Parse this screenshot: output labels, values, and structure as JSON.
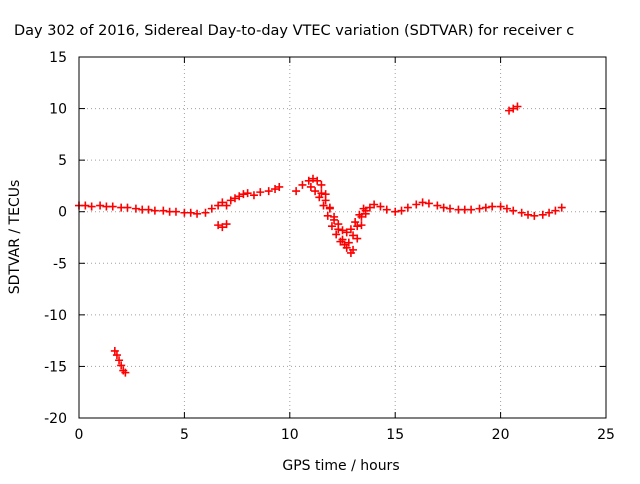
{
  "colors": {
    "background": "#ffffff",
    "axis": "#000000",
    "grid": "#a0a0a0",
    "series": "#ff0000"
  },
  "chart_data": {
    "type": "scatter",
    "title": "Day 302 of 2016, Sidereal Day-to-day VTEC variation (SDTVAR) for receiver c",
    "xlabel": "GPS time / hours",
    "ylabel": "SDTVAR / TECUs",
    "xlim": [
      0,
      25
    ],
    "ylim": [
      -20,
      15
    ],
    "xticks": [
      0,
      5,
      10,
      15,
      20,
      25
    ],
    "yticks": [
      -20,
      -15,
      -10,
      -5,
      0,
      5,
      10,
      15
    ],
    "grid": true,
    "marker": "+",
    "series": [
      {
        "name": "SDTVAR",
        "color": "#ff0000",
        "points": [
          [
            0.0,
            0.6
          ],
          [
            0.3,
            0.6
          ],
          [
            0.6,
            0.5
          ],
          [
            1.0,
            0.6
          ],
          [
            1.3,
            0.5
          ],
          [
            1.6,
            0.5
          ],
          [
            2.0,
            0.4
          ],
          [
            2.3,
            0.4
          ],
          [
            2.7,
            0.3
          ],
          [
            3.0,
            0.2
          ],
          [
            3.3,
            0.2
          ],
          [
            3.6,
            0.1
          ],
          [
            4.0,
            0.1
          ],
          [
            4.3,
            0.0
          ],
          [
            4.6,
            0.0
          ],
          [
            5.0,
            -0.1
          ],
          [
            5.3,
            -0.1
          ],
          [
            5.6,
            -0.2
          ],
          [
            6.0,
            -0.1
          ],
          [
            6.3,
            0.3
          ],
          [
            6.6,
            0.6
          ],
          [
            6.8,
            0.9
          ],
          [
            7.0,
            0.6
          ],
          [
            7.2,
            1.1
          ],
          [
            7.4,
            1.3
          ],
          [
            7.6,
            1.5
          ],
          [
            7.8,
            1.7
          ],
          [
            8.0,
            1.8
          ],
          [
            8.3,
            1.6
          ],
          [
            8.6,
            1.9
          ],
          [
            9.0,
            2.0
          ],
          [
            9.3,
            2.2
          ],
          [
            9.5,
            2.4
          ],
          [
            10.3,
            2.0
          ],
          [
            10.6,
            2.6
          ],
          [
            10.9,
            3.0
          ],
          [
            11.1,
            3.2
          ],
          [
            11.3,
            3.0
          ],
          [
            11.5,
            2.6
          ],
          [
            11.7,
            1.7
          ],
          [
            11.9,
            0.4
          ],
          [
            12.1,
            -0.8
          ],
          [
            12.3,
            -1.7
          ],
          [
            12.5,
            -2.7
          ],
          [
            12.7,
            -3.5
          ],
          [
            12.9,
            -4.0
          ],
          [
            13.0,
            -3.7
          ],
          [
            13.2,
            -2.6
          ],
          [
            13.4,
            -1.3
          ],
          [
            13.6,
            -0.2
          ],
          [
            13.8,
            0.4
          ],
          [
            14.0,
            0.7
          ],
          [
            14.3,
            0.5
          ],
          [
            14.6,
            0.2
          ],
          [
            15.0,
            0.0
          ],
          [
            15.3,
            0.1
          ],
          [
            15.6,
            0.4
          ],
          [
            16.0,
            0.7
          ],
          [
            16.3,
            0.9
          ],
          [
            16.6,
            0.8
          ],
          [
            17.0,
            0.6
          ],
          [
            17.3,
            0.4
          ],
          [
            17.6,
            0.3
          ],
          [
            18.0,
            0.2
          ],
          [
            18.3,
            0.2
          ],
          [
            18.6,
            0.2
          ],
          [
            19.0,
            0.3
          ],
          [
            19.3,
            0.4
          ],
          [
            19.6,
            0.5
          ],
          [
            20.0,
            0.5
          ],
          [
            20.3,
            0.3
          ],
          [
            20.6,
            0.1
          ],
          [
            21.0,
            -0.1
          ],
          [
            21.3,
            -0.3
          ],
          [
            21.6,
            -0.4
          ],
          [
            22.0,
            -0.3
          ],
          [
            22.3,
            -0.1
          ],
          [
            22.6,
            0.1
          ],
          [
            22.9,
            0.4
          ],
          [
            11.0,
            2.4
          ],
          [
            11.2,
            2.0
          ],
          [
            11.4,
            1.4
          ],
          [
            11.6,
            0.6
          ],
          [
            11.8,
            -0.4
          ],
          [
            12.0,
            -1.4
          ],
          [
            12.2,
            -2.2
          ],
          [
            12.4,
            -2.9
          ],
          [
            12.6,
            -3.2
          ],
          [
            12.8,
            -3.0
          ],
          [
            13.0,
            -2.3
          ],
          [
            13.2,
            -1.4
          ],
          [
            13.4,
            -0.5
          ],
          [
            13.6,
            0.1
          ],
          [
            11.5,
            1.8
          ],
          [
            11.7,
            1.1
          ],
          [
            11.9,
            0.3
          ],
          [
            12.1,
            -0.5
          ],
          [
            12.3,
            -1.2
          ],
          [
            12.5,
            -1.8
          ],
          [
            12.7,
            -2.0
          ],
          [
            12.9,
            -1.7
          ],
          [
            13.1,
            -1.0
          ],
          [
            13.3,
            -0.3
          ],
          [
            13.5,
            0.3
          ],
          [
            6.6,
            -1.3
          ],
          [
            6.8,
            -1.5
          ],
          [
            7.0,
            -1.2
          ],
          [
            1.7,
            -13.5
          ],
          [
            1.8,
            -13.9
          ],
          [
            1.9,
            -14.4
          ],
          [
            2.0,
            -14.9
          ],
          [
            2.1,
            -15.4
          ],
          [
            2.2,
            -15.6
          ],
          [
            20.4,
            9.8
          ],
          [
            20.6,
            10.0
          ],
          [
            20.8,
            10.2
          ]
        ]
      }
    ]
  }
}
